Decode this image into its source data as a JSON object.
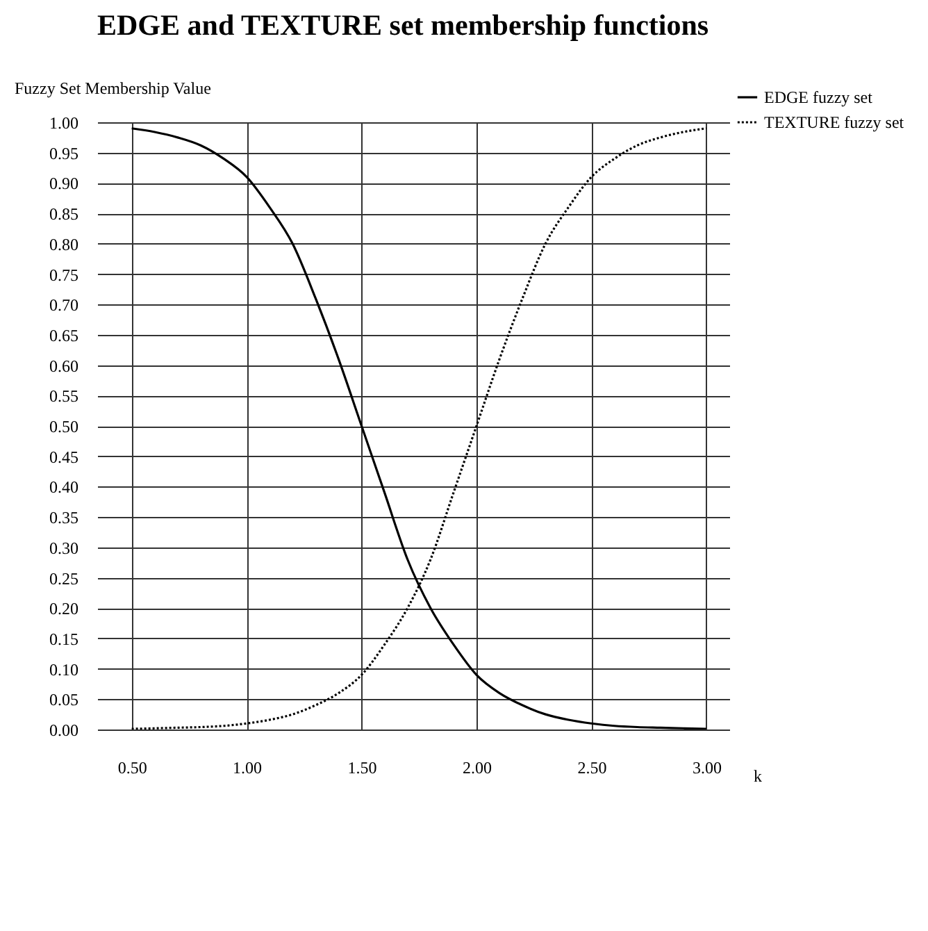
{
  "chart_data": {
    "type": "line",
    "title": "EDGE and TEXTURE set membership functions",
    "ylabel": "Fuzzy Set Membership Value",
    "xlabel": "k",
    "x": [
      0.5,
      0.6,
      0.7,
      0.8,
      0.9,
      1.0,
      1.1,
      1.2,
      1.3,
      1.4,
      1.5,
      1.6,
      1.7,
      1.8,
      1.9,
      2.0,
      2.1,
      2.2,
      2.3,
      2.4,
      2.5,
      2.6,
      2.7,
      2.8,
      2.9,
      3.0
    ],
    "series": [
      {
        "name": "EDGE fuzzy set",
        "color": "#000000",
        "line_style": "solid",
        "values": [
          0.99,
          0.984,
          0.975,
          0.962,
          0.94,
          0.91,
          0.86,
          0.8,
          0.71,
          0.61,
          0.5,
          0.39,
          0.28,
          0.2,
          0.14,
          0.09,
          0.06,
          0.04,
          0.025,
          0.016,
          0.01,
          0.006,
          0.004,
          0.003,
          0.002,
          0.001
        ]
      },
      {
        "name": "TEXTURE fuzzy set",
        "color": "#000000",
        "line_style": "dotted",
        "values": [
          0.001,
          0.002,
          0.003,
          0.004,
          0.006,
          0.01,
          0.016,
          0.025,
          0.04,
          0.06,
          0.09,
          0.14,
          0.2,
          0.28,
          0.39,
          0.5,
          0.61,
          0.71,
          0.8,
          0.86,
          0.91,
          0.94,
          0.962,
          0.975,
          0.984,
          0.99
        ]
      }
    ],
    "xlim": [
      0.35,
      3.1
    ],
    "xticks": [
      {
        "value": 0.5,
        "label": "0.50"
      },
      {
        "value": 1.0,
        "label": "1.00"
      },
      {
        "value": 1.5,
        "label": "1.50"
      },
      {
        "value": 2.0,
        "label": "2.00"
      },
      {
        "value": 2.5,
        "label": "2.50"
      },
      {
        "value": 3.0,
        "label": "3.00"
      }
    ],
    "ylim": [
      0,
      1
    ],
    "yticks": [
      {
        "value": 0,
        "label": "0.00"
      },
      {
        "value": 0.05,
        "label": "0.05"
      },
      {
        "value": 0.1,
        "label": "0.10"
      },
      {
        "value": 0.15,
        "label": "0.15"
      },
      {
        "value": 0.2,
        "label": "0.20"
      },
      {
        "value": 0.25,
        "label": "0.25"
      },
      {
        "value": 0.3,
        "label": "0.30"
      },
      {
        "value": 0.35,
        "label": "0.35"
      },
      {
        "value": 0.4,
        "label": "0.40"
      },
      {
        "value": 0.45,
        "label": "0.45"
      },
      {
        "value": 0.5,
        "label": "0.50"
      },
      {
        "value": 0.55,
        "label": "0.55"
      },
      {
        "value": 0.6,
        "label": "0.60"
      },
      {
        "value": 0.65,
        "label": "0.65"
      },
      {
        "value": 0.7,
        "label": "0.70"
      },
      {
        "value": 0.75,
        "label": "0.75"
      },
      {
        "value": 0.8,
        "label": "0.80"
      },
      {
        "value": 0.85,
        "label": "0.85"
      },
      {
        "value": 0.9,
        "label": "0.90"
      },
      {
        "value": 0.95,
        "label": "0.95"
      },
      {
        "value": 1,
        "label": "1.00"
      }
    ],
    "grid": true,
    "legend": "top right",
    "marker": "none"
  }
}
